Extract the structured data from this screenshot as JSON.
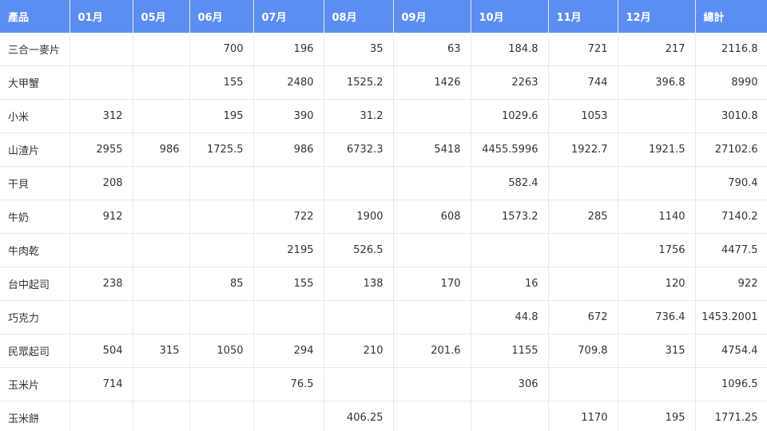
{
  "table": {
    "columns": [
      "產品",
      "01月",
      "05月",
      "06月",
      "07月",
      "08月",
      "09月",
      "10月",
      "11月",
      "12月",
      "總計"
    ],
    "rows": [
      [
        "三合一麥片",
        "",
        "",
        "700",
        "196",
        "35",
        "63",
        "184.8",
        "721",
        "217",
        "2116.8"
      ],
      [
        "大甲蟹",
        "",
        "",
        "155",
        "2480",
        "1525.2",
        "1426",
        "2263",
        "744",
        "396.8",
        "8990"
      ],
      [
        "小米",
        "312",
        "",
        "195",
        "390",
        "31.2",
        "",
        "1029.6",
        "1053",
        "",
        "3010.8"
      ],
      [
        "山渣片",
        "2955",
        "986",
        "1725.5",
        "986",
        "6732.3",
        "5418",
        "4455.5996",
        "1922.7",
        "1921.5",
        "27102.6"
      ],
      [
        "干貝",
        "208",
        "",
        "",
        "",
        "",
        "",
        "582.4",
        "",
        "",
        "790.4"
      ],
      [
        "牛奶",
        "912",
        "",
        "",
        "722",
        "1900",
        "608",
        "1573.2",
        "285",
        "1140",
        "7140.2"
      ],
      [
        "牛肉乾",
        "",
        "",
        "",
        "2195",
        "526.5",
        "",
        "",
        "",
        "1756",
        "4477.5"
      ],
      [
        "台中起司",
        "238",
        "",
        "85",
        "155",
        "138",
        "170",
        "16",
        "",
        "120",
        "922"
      ],
      [
        "巧克力",
        "",
        "",
        "",
        "",
        "",
        "",
        "44.8",
        "672",
        "736.4",
        "1453.2001"
      ],
      [
        "民眾起司",
        "504",
        "315",
        "1050",
        "294",
        "210",
        "201.6",
        "1155",
        "709.8",
        "315",
        "4754.4"
      ],
      [
        "玉米片",
        "714",
        "",
        "",
        "76.5",
        "",
        "",
        "306",
        "",
        "",
        "1096.5"
      ],
      [
        "玉米餅",
        "",
        "",
        "",
        "",
        "406.25",
        "",
        "",
        "1170",
        "195",
        "1771.25"
      ]
    ]
  },
  "colors": {
    "header_bg": "#5b8ef0",
    "header_text": "#ffffff",
    "grid_line": "#e8e8e8",
    "cell_text": "#333333"
  }
}
